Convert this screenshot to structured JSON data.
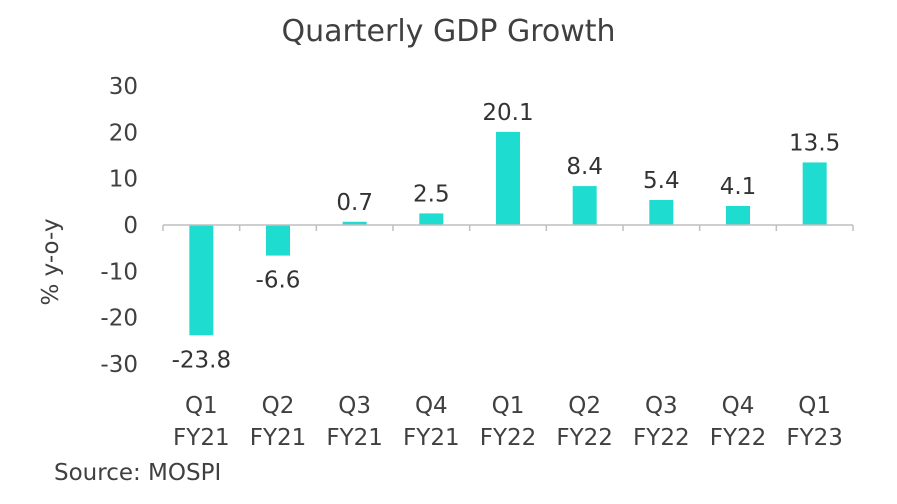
{
  "chart_data": {
    "type": "bar",
    "title": "Quarterly GDP Growth",
    "ylabel": "% y-o-y",
    "xlabel": "",
    "categories": [
      [
        "Q1",
        "FY21"
      ],
      [
        "Q2",
        "FY21"
      ],
      [
        "Q3",
        "FY21"
      ],
      [
        "Q4",
        "FY21"
      ],
      [
        "Q1",
        "FY22"
      ],
      [
        "Q2",
        "FY22"
      ],
      [
        "Q3",
        "FY22"
      ],
      [
        "Q4",
        "FY22"
      ],
      [
        "Q1",
        "FY23"
      ]
    ],
    "values": [
      -23.8,
      -6.6,
      0.7,
      2.5,
      20.1,
      8.4,
      5.4,
      4.1,
      13.5
    ],
    "data_labels": [
      "-23.8",
      "-6.6",
      "0.7",
      "2.5",
      "20.1",
      "8.4",
      "5.4",
      "4.1",
      "13.5"
    ],
    "ylim": [
      -30,
      30
    ],
    "yticks": [
      30,
      20,
      10,
      0,
      -10,
      -20,
      -30
    ],
    "grid": false,
    "legend": "none",
    "bar_color": "#1fdcd0",
    "axis_color": "#bfbfbf"
  },
  "source": "Source: MOSPI"
}
